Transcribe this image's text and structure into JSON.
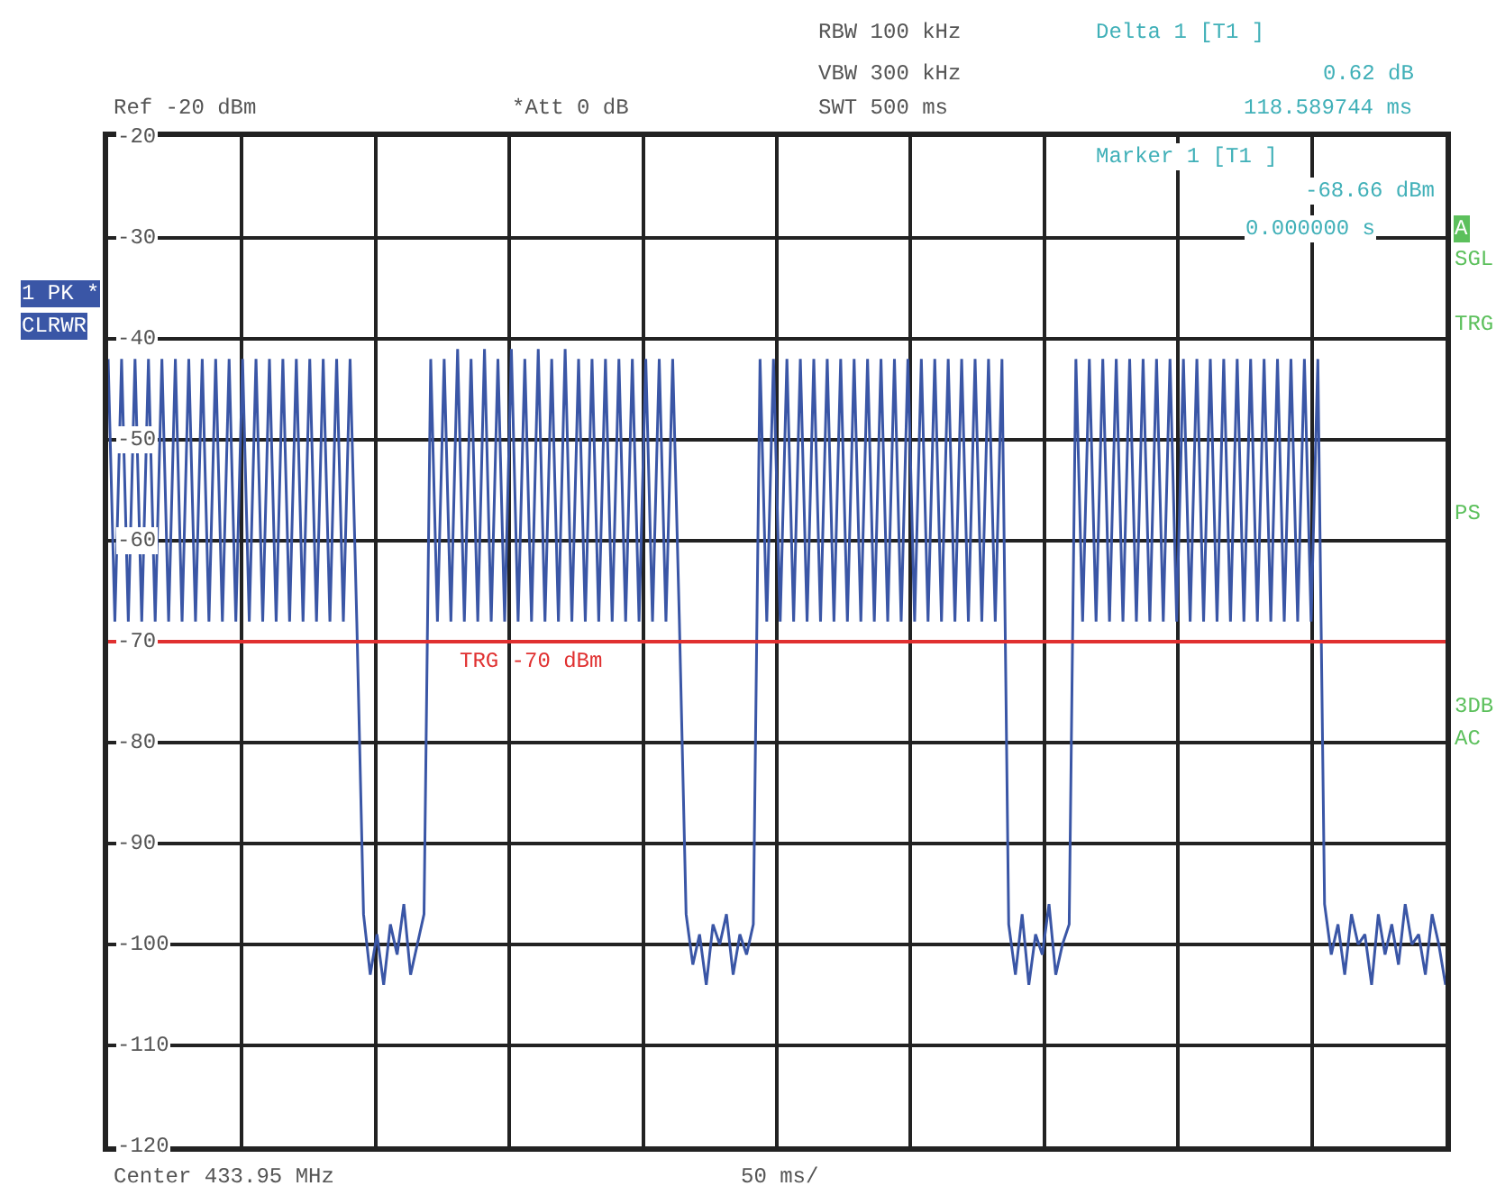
{
  "chart_data": {
    "type": "line",
    "categories": [
      null,
      null,
      null,
      null,
      null,
      null,
      null,
      null,
      null,
      null,
      null,
      null,
      null,
      null,
      null,
      null,
      null,
      null,
      null,
      null,
      null,
      null,
      null,
      null,
      null,
      null,
      null,
      null,
      null,
      null,
      null,
      null,
      null,
      null,
      null,
      null,
      null,
      null,
      null,
      null,
      null,
      null,
      null,
      null,
      null,
      null,
      null,
      null,
      null,
      null,
      null,
      null,
      null,
      null,
      null,
      null,
      null,
      null,
      null,
      null,
      null,
      null,
      null,
      null,
      null,
      null,
      null,
      null,
      null,
      null,
      null,
      null,
      null,
      null,
      null,
      null,
      null,
      null,
      null,
      null,
      null,
      null,
      null,
      null,
      null,
      null,
      null,
      null,
      null,
      null,
      null,
      null,
      null,
      null,
      null,
      null,
      null,
      null,
      null,
      null,
      null,
      null,
      null,
      null,
      null,
      null,
      null,
      null,
      null,
      null,
      null,
      null,
      null,
      null,
      null,
      null,
      null,
      null,
      null,
      null,
      null,
      null,
      null,
      null,
      null,
      null,
      null,
      null,
      null,
      null,
      null,
      null,
      null,
      null,
      null,
      null,
      null,
      null,
      null,
      null,
      null,
      null,
      null,
      null,
      null,
      null,
      null,
      null,
      null,
      null,
      null,
      null,
      null,
      null,
      null,
      null,
      null,
      null,
      null,
      null,
      null,
      null,
      null,
      null,
      null,
      null,
      null,
      null,
      null,
      null,
      null,
      null,
      null,
      null,
      null,
      null,
      null,
      null,
      null,
      null,
      null,
      null,
      null,
      null,
      null,
      null,
      null,
      null,
      null,
      null,
      null,
      null,
      null,
      null,
      null,
      null,
      null,
      null,
      null,
      null
    ],
    "series": [
      {
        "color": "#3a56a6",
        "values": [
          -42,
          -68,
          -42,
          -68,
          -42,
          -68,
          -42,
          -68,
          -42,
          -68,
          -42,
          -68,
          -42,
          -68,
          -42,
          -68,
          -42,
          -68,
          -42,
          -68,
          -42,
          -68,
          -42,
          -68,
          -42,
          -68,
          -42,
          -68,
          -42,
          -68,
          -42,
          -68,
          -42,
          -68,
          -42,
          -68,
          -42,
          -68,
          -97,
          -103,
          -99,
          -104,
          -98,
          -101,
          -96,
          -103,
          -100,
          -97,
          -42,
          -68,
          -42,
          -68,
          -41,
          -68,
          -42,
          -68,
          -41,
          -68,
          -42,
          -68,
          -41,
          -68,
          -42,
          -68,
          -41,
          -68,
          -42,
          -68,
          -41,
          -68,
          -42,
          -68,
          -42,
          -68,
          -42,
          -68,
          -42,
          -68,
          -42,
          -68,
          -42,
          -68,
          -42,
          -68,
          -42,
          -68,
          -97,
          -102,
          -99,
          -104,
          -98,
          -100,
          -97,
          -103,
          -99,
          -101,
          -98,
          -42,
          -68,
          -42,
          -68,
          -42,
          -68,
          -42,
          -68,
          -42,
          -68,
          -42,
          -68,
          -42,
          -68,
          -42,
          -68,
          -42,
          -68,
          -42,
          -68,
          -42,
          -68,
          -42,
          -68,
          -42,
          -68,
          -42,
          -68,
          -42,
          -68,
          -42,
          -68,
          -42,
          -68,
          -42,
          -68,
          -42,
          -98,
          -103,
          -97,
          -104,
          -99,
          -101,
          -96,
          -103,
          -100,
          -98,
          -42,
          -68,
          -42,
          -68,
          -42,
          -68,
          -42,
          -68,
          -42,
          -68,
          -42,
          -68,
          -42,
          -68,
          -42,
          -68,
          -42,
          -68,
          -42,
          -68,
          -42,
          -68,
          -42,
          -68,
          -42,
          -68,
          -42,
          -68,
          -42,
          -68,
          -42,
          -68,
          -42,
          -68,
          -42,
          -68,
          -42,
          -96,
          -101,
          -98,
          -103,
          -97,
          -100,
          -99,
          -104,
          -97,
          -101,
          -98,
          -102,
          -96,
          -100,
          -99,
          -103,
          -97,
          -100,
          -104
        ]
      }
    ],
    "ylim": [
      -120,
      -20
    ],
    "yticks": [
      -20,
      -30,
      -40,
      -50,
      -60,
      -70,
      -80,
      -90,
      -100,
      -110,
      -120
    ],
    "grid": true,
    "tick_labels": "y",
    "ref_lines": [
      {
        "axis": "y",
        "value": -70,
        "label": "TRG -70 dBm",
        "color": "#e03030"
      }
    ],
    "annotations": [
      "RBW 100 kHz",
      "VBW 300 kHz",
      "SWT 500 ms",
      "Delta 1 [T1 ]",
      "0.62 dB",
      "118.589744 ms",
      "Ref -20 dBm",
      "*Att 0 dB",
      "Marker 1 [T1 ]",
      "-68.66 dBm",
      "0.000000 s",
      "1 PK *",
      "CLRWR",
      "A",
      "SGL",
      "TRG",
      "PS",
      "3DB",
      "AC",
      "Center 433.95 MHz",
      "50 ms/"
    ]
  }
}
